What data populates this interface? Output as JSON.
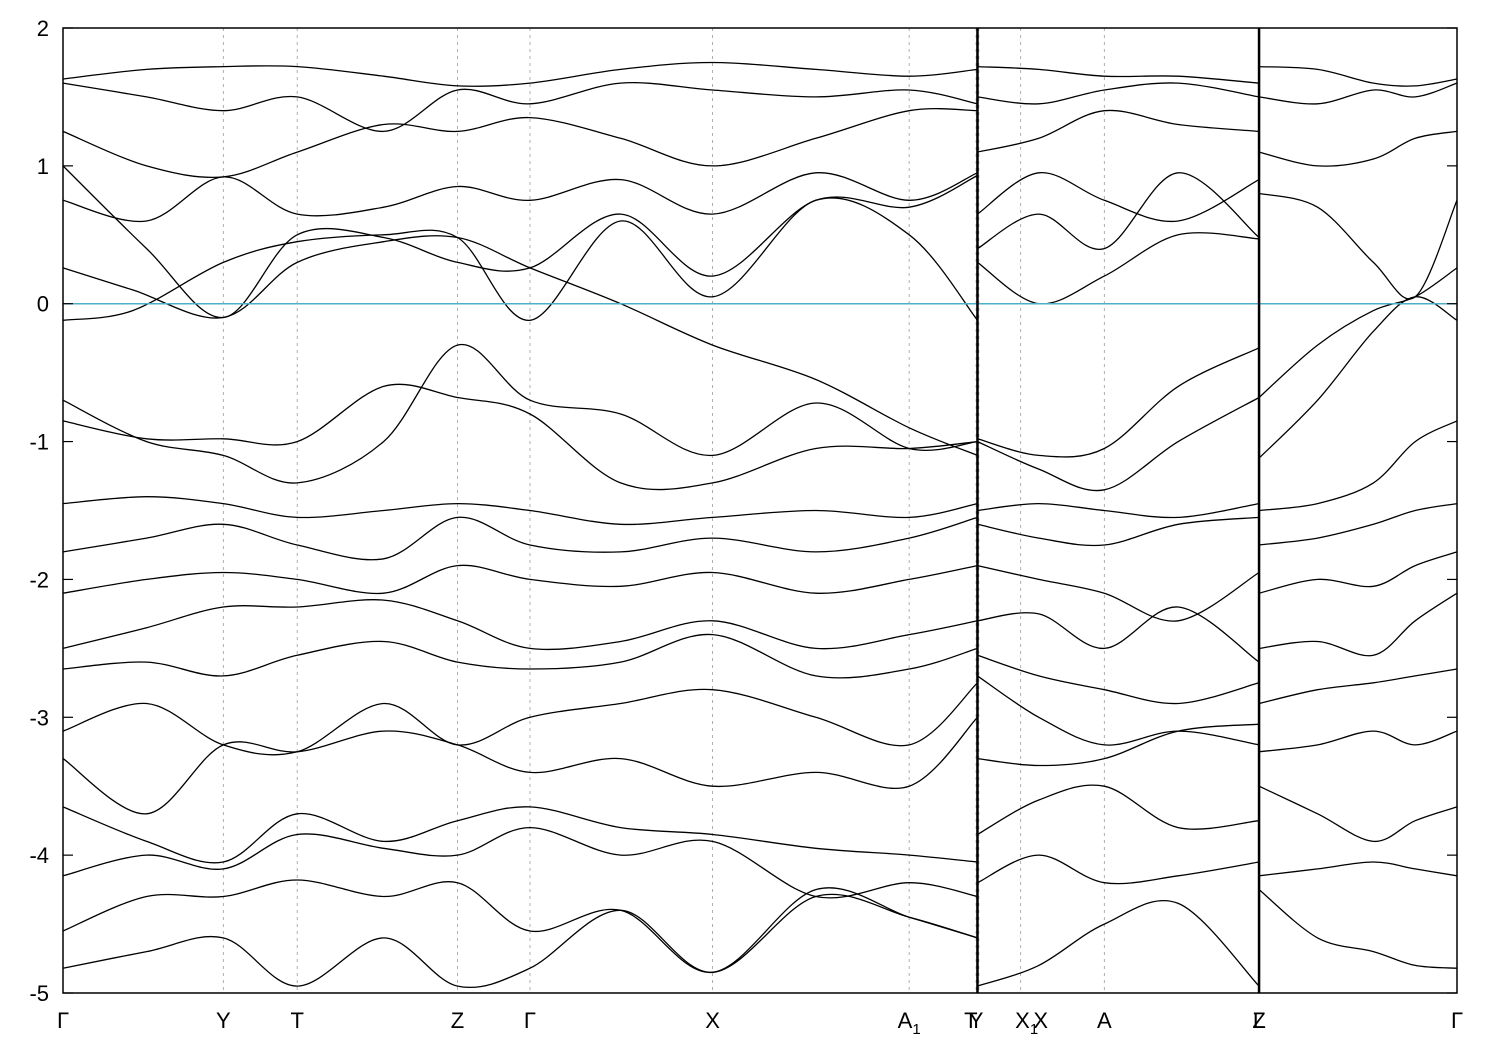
{
  "chart_data": {
    "type": "line",
    "title": "",
    "xlabel": "",
    "ylabel": "",
    "ylim": [
      -5,
      2
    ],
    "yticks": [
      -5,
      -4,
      -3,
      -2,
      -1,
      0,
      1,
      2
    ],
    "fermi_level": 0,
    "colors": {
      "bands": "#000000",
      "fermi": "#4bafc8",
      "grid": "#9a9a9a"
    },
    "grid": "vertical dashed at high-symmetry points",
    "path_length": 10,
    "kpoints": [
      {
        "label": "Γ",
        "sub": "",
        "x": 0.0
      },
      {
        "label": "Y",
        "sub": "",
        "x": 1.15
      },
      {
        "label": "T",
        "sub": "",
        "x": 1.68
      },
      {
        "label": "Z",
        "sub": "",
        "x": 2.83
      },
      {
        "label": "Γ",
        "sub": "",
        "x": 3.35
      },
      {
        "label": "X",
        "sub": "",
        "x": 4.66
      },
      {
        "label": "A",
        "sub": "1",
        "x": 6.07
      },
      {
        "label": "Y",
        "sub": "",
        "x": 6.55
      },
      {
        "label": "T",
        "sub": "",
        "x": 6.57
      },
      {
        "label": "X",
        "sub": "1",
        "x": 6.87
      },
      {
        "label": "X",
        "sub": "",
        "x": 6.87
      },
      {
        "label": "A",
        "sub": "",
        "x": 7.47
      },
      {
        "label": "Z",
        "sub": "",
        "x": 8.58
      },
      {
        "label": "L",
        "sub": "",
        "x": 8.58
      },
      {
        "label": "Γ",
        "sub": "",
        "x": 10.0
      }
    ],
    "segment_breaks": [
      6.56,
      8.58
    ],
    "bands": [
      {
        "x": [
          0,
          0.5,
          1.15,
          1.68,
          2.3,
          2.83,
          3.35,
          4.0,
          4.66,
          5.4,
          6.07,
          6.56
        ],
        "y": [
          0.26,
          0.1,
          -0.1,
          0.3,
          0.45,
          0.48,
          0.26,
          0.0,
          -0.3,
          -0.55,
          -0.9,
          -1.1
        ]
      },
      {
        "x": [
          0,
          0.5,
          1.15,
          1.68,
          2.3,
          2.83,
          3.35,
          4.0,
          4.66,
          5.4,
          6.07,
          6.56
        ],
        "y": [
          -0.12,
          -0.05,
          0.3,
          0.45,
          0.5,
          0.48,
          -0.12,
          0.6,
          0.05,
          0.75,
          0.5,
          -0.12
        ]
      },
      {
        "x": [
          0,
          0.6,
          1.15,
          1.68,
          2.3,
          2.83,
          3.35,
          4.0,
          4.66,
          5.4,
          6.07,
          6.56
        ],
        "y": [
          1.0,
          0.4,
          -0.1,
          0.5,
          0.48,
          0.3,
          0.26,
          0.65,
          0.2,
          0.75,
          0.7,
          0.93
        ]
      },
      {
        "x": [
          0,
          0.6,
          1.15,
          1.68,
          2.3,
          2.83,
          3.35,
          4.0,
          4.66,
          5.4,
          6.07,
          6.56
        ],
        "y": [
          -0.7,
          -1.0,
          -1.1,
          -1.3,
          -1.0,
          -0.3,
          -0.7,
          -0.8,
          -1.1,
          -0.72,
          -1.05,
          -1.0
        ]
      },
      {
        "x": [
          0,
          0.6,
          1.15,
          1.68,
          2.3,
          2.83,
          3.35,
          4.0,
          4.66,
          5.4,
          6.07,
          6.56
        ],
        "y": [
          -0.85,
          -0.98,
          -0.98,
          -1.0,
          -0.6,
          -0.68,
          -0.8,
          -1.3,
          -1.3,
          -1.05,
          -1.05,
          -1.0
        ]
      },
      {
        "x": [
          0,
          0.6,
          1.15,
          1.68,
          2.3,
          2.83,
          3.35,
          4.0,
          4.66,
          5.4,
          6.07,
          6.56
        ],
        "y": [
          -1.45,
          -1.4,
          -1.45,
          -1.55,
          -1.5,
          -1.45,
          -1.5,
          -1.6,
          -1.55,
          -1.5,
          -1.55,
          -1.45
        ]
      },
      {
        "x": [
          0,
          0.6,
          1.15,
          1.68,
          2.3,
          2.83,
          3.35,
          4.0,
          4.66,
          5.4,
          6.07,
          6.56
        ],
        "y": [
          -1.8,
          -1.7,
          -1.6,
          -1.75,
          -1.85,
          -1.55,
          -1.75,
          -1.8,
          -1.7,
          -1.8,
          -1.7,
          -1.55
        ]
      },
      {
        "x": [
          0,
          0.6,
          1.15,
          1.68,
          2.3,
          2.83,
          3.35,
          4.0,
          4.66,
          5.4,
          6.07,
          6.56
        ],
        "y": [
          -2.1,
          -2.0,
          -1.95,
          -2.0,
          -2.1,
          -1.9,
          -2.0,
          -2.05,
          -1.95,
          -2.1,
          -2.0,
          -1.9
        ]
      },
      {
        "x": [
          0,
          0.6,
          1.15,
          1.68,
          2.3,
          2.83,
          3.35,
          4.0,
          4.66,
          5.4,
          6.07,
          6.56
        ],
        "y": [
          -2.5,
          -2.35,
          -2.2,
          -2.2,
          -2.15,
          -2.3,
          -2.5,
          -2.45,
          -2.3,
          -2.5,
          -2.4,
          -2.3
        ]
      },
      {
        "x": [
          0,
          0.6,
          1.15,
          1.68,
          2.3,
          2.83,
          3.35,
          4.0,
          4.66,
          5.4,
          6.07,
          6.56
        ],
        "y": [
          -2.65,
          -2.6,
          -2.7,
          -2.55,
          -2.45,
          -2.6,
          -2.65,
          -2.6,
          -2.4,
          -2.7,
          -2.65,
          -2.5
        ]
      },
      {
        "x": [
          0,
          0.6,
          1.15,
          1.68,
          2.3,
          2.83,
          3.35,
          4.0,
          4.66,
          5.4,
          6.07,
          6.56
        ],
        "y": [
          -3.1,
          -2.9,
          -3.2,
          -3.25,
          -2.9,
          -3.2,
          -3.0,
          -2.9,
          -2.8,
          -3.0,
          -3.2,
          -2.75
        ]
      },
      {
        "x": [
          0,
          0.6,
          1.15,
          1.68,
          2.3,
          2.83,
          3.35,
          4.0,
          4.66,
          5.4,
          6.07,
          6.56
        ],
        "y": [
          -3.3,
          -3.7,
          -3.2,
          -3.25,
          -3.1,
          -3.2,
          -3.4,
          -3.3,
          -3.5,
          -3.4,
          -3.5,
          -3.0
        ]
      },
      {
        "x": [
          0,
          0.6,
          1.15,
          1.68,
          2.3,
          2.83,
          3.35,
          4.0,
          4.66,
          5.4,
          6.07,
          6.56
        ],
        "y": [
          -3.65,
          -3.9,
          -4.05,
          -3.7,
          -3.9,
          -3.75,
          -3.65,
          -3.8,
          -3.85,
          -3.95,
          -4.0,
          -4.05
        ]
      },
      {
        "x": [
          0,
          0.6,
          1.15,
          1.68,
          2.3,
          2.83,
          3.35,
          4.0,
          4.66,
          5.4,
          6.07,
          6.56
        ],
        "y": [
          -4.15,
          -4.0,
          -4.1,
          -3.85,
          -3.95,
          -4.0,
          -3.8,
          -4.0,
          -3.9,
          -4.3,
          -4.2,
          -4.3
        ]
      },
      {
        "x": [
          0,
          0.6,
          1.15,
          1.68,
          2.3,
          2.83,
          3.35,
          4.0,
          4.66,
          5.4,
          6.07,
          6.56
        ],
        "y": [
          -4.55,
          -4.3,
          -4.3,
          -4.18,
          -4.3,
          -4.2,
          -4.55,
          -4.4,
          -4.85,
          -4.25,
          -4.45,
          -4.6
        ]
      },
      {
        "x": [
          0,
          0.6,
          1.15,
          1.68,
          2.3,
          2.83,
          3.35,
          4.0,
          4.66,
          5.4,
          6.07,
          6.56
        ],
        "y": [
          -4.82,
          -4.7,
          -4.6,
          -4.95,
          -4.6,
          -4.95,
          -4.82,
          -4.4,
          -4.85,
          -4.3,
          -4.45,
          -4.6
        ]
      },
      {
        "x": [
          0,
          0.6,
          1.15,
          1.68,
          2.3,
          2.83,
          3.35,
          4.0,
          4.66,
          5.4,
          6.07,
          6.56
        ],
        "y": [
          0.75,
          0.6,
          0.92,
          0.65,
          0.7,
          0.85,
          0.75,
          0.9,
          0.65,
          0.95,
          0.75,
          0.95
        ]
      },
      {
        "x": [
          0,
          0.6,
          1.15,
          1.68,
          2.3,
          2.83,
          3.35,
          4.0,
          4.66,
          5.4,
          6.07,
          6.56
        ],
        "y": [
          1.25,
          1.0,
          0.92,
          1.1,
          1.3,
          1.25,
          1.35,
          1.2,
          1.0,
          1.2,
          1.4,
          1.4
        ]
      },
      {
        "x": [
          0,
          0.6,
          1.15,
          1.68,
          2.3,
          2.83,
          3.35,
          4.0,
          4.66,
          5.4,
          6.07,
          6.56
        ],
        "y": [
          1.6,
          1.5,
          1.4,
          1.5,
          1.25,
          1.55,
          1.45,
          1.6,
          1.55,
          1.5,
          1.55,
          1.45
        ]
      },
      {
        "x": [
          0,
          0.6,
          1.15,
          1.68,
          2.3,
          2.83,
          3.35,
          4.0,
          4.66,
          5.4,
          6.07,
          6.56
        ],
        "y": [
          1.63,
          1.7,
          1.72,
          1.72,
          1.65,
          1.58,
          1.6,
          1.7,
          1.75,
          1.7,
          1.65,
          1.7
        ]
      },
      {
        "x": [
          6.56,
          7.0,
          7.47,
          8.0,
          8.58
        ],
        "y": [
          0.3,
          0.0,
          0.2,
          0.5,
          0.47
        ]
      },
      {
        "x": [
          6.56,
          7.0,
          7.47,
          8.0,
          8.58
        ],
        "y": [
          0.4,
          0.65,
          0.4,
          0.95,
          0.48
        ]
      },
      {
        "x": [
          6.56,
          7.0,
          7.47,
          8.0,
          8.58
        ],
        "y": [
          0.65,
          0.95,
          0.75,
          0.6,
          0.9
        ]
      },
      {
        "x": [
          6.56,
          7.0,
          7.47,
          8.0,
          8.58
        ],
        "y": [
          1.1,
          1.2,
          1.4,
          1.3,
          1.25
        ]
      },
      {
        "x": [
          6.56,
          7.0,
          7.47,
          8.0,
          8.58
        ],
        "y": [
          1.5,
          1.45,
          1.55,
          1.6,
          1.5
        ]
      },
      {
        "x": [
          6.56,
          7.0,
          7.47,
          8.0,
          8.58
        ],
        "y": [
          1.72,
          1.7,
          1.65,
          1.65,
          1.6
        ]
      },
      {
        "x": [
          6.56,
          7.0,
          7.47,
          8.0,
          8.58
        ],
        "y": [
          -0.98,
          -1.1,
          -1.05,
          -0.6,
          -0.32
        ]
      },
      {
        "x": [
          6.56,
          7.0,
          7.47,
          8.0,
          8.58
        ],
        "y": [
          -1.0,
          -1.2,
          -1.35,
          -1.0,
          -0.68
        ]
      },
      {
        "x": [
          6.56,
          7.0,
          7.47,
          8.0,
          8.58
        ],
        "y": [
          -1.5,
          -1.45,
          -1.5,
          -1.55,
          -1.45
        ]
      },
      {
        "x": [
          6.56,
          7.0,
          7.47,
          8.0,
          8.58
        ],
        "y": [
          -1.6,
          -1.7,
          -1.75,
          -1.6,
          -1.55
        ]
      },
      {
        "x": [
          6.56,
          7.0,
          7.47,
          8.0,
          8.58
        ],
        "y": [
          -1.9,
          -2.0,
          -2.1,
          -2.3,
          -1.95
        ]
      },
      {
        "x": [
          6.56,
          7.0,
          7.47,
          8.0,
          8.58
        ],
        "y": [
          -2.3,
          -2.25,
          -2.5,
          -2.2,
          -2.6
        ]
      },
      {
        "x": [
          6.56,
          7.0,
          7.47,
          8.0,
          8.58
        ],
        "y": [
          -2.55,
          -2.7,
          -2.8,
          -2.9,
          -2.75
        ]
      },
      {
        "x": [
          6.56,
          7.0,
          7.47,
          8.0,
          8.58
        ],
        "y": [
          -2.7,
          -3.0,
          -3.2,
          -3.1,
          -3.2
        ]
      },
      {
        "x": [
          6.56,
          7.0,
          7.47,
          8.0,
          8.58
        ],
        "y": [
          -3.3,
          -3.35,
          -3.3,
          -3.1,
          -3.05
        ]
      },
      {
        "x": [
          6.56,
          7.0,
          7.47,
          8.0,
          8.58
        ],
        "y": [
          -3.85,
          -3.6,
          -3.5,
          -3.8,
          -3.75
        ]
      },
      {
        "x": [
          6.56,
          7.0,
          7.47,
          8.0,
          8.58
        ],
        "y": [
          -4.2,
          -4.0,
          -4.2,
          -4.15,
          -4.05
        ]
      },
      {
        "x": [
          6.56,
          7.0,
          7.47,
          8.0,
          8.58
        ],
        "y": [
          -4.95,
          -4.8,
          -4.5,
          -4.35,
          -4.95
        ]
      },
      {
        "x": [
          8.58,
          9.0,
          9.4,
          9.7,
          10.0
        ],
        "y": [
          -0.68,
          -0.3,
          -0.05,
          0.05,
          0.26
        ]
      },
      {
        "x": [
          8.58,
          9.0,
          9.4,
          9.7,
          10.0
        ],
        "y": [
          -1.12,
          -0.7,
          -0.2,
          0.05,
          -0.12
        ]
      },
      {
        "x": [
          8.58,
          9.0,
          9.4,
          9.7,
          10.0
        ],
        "y": [
          0.8,
          0.7,
          0.3,
          0.05,
          0.75
        ]
      },
      {
        "x": [
          8.58,
          9.0,
          9.4,
          9.7,
          10.0
        ],
        "y": [
          -1.5,
          -1.45,
          -1.3,
          -1.0,
          -0.85
        ]
      },
      {
        "x": [
          8.58,
          9.0,
          9.4,
          9.7,
          10.0
        ],
        "y": [
          -1.75,
          -1.7,
          -1.6,
          -1.5,
          -1.45
        ]
      },
      {
        "x": [
          8.58,
          9.0,
          9.4,
          9.7,
          10.0
        ],
        "y": [
          -2.1,
          -2.0,
          -2.05,
          -1.9,
          -1.8
        ]
      },
      {
        "x": [
          8.58,
          9.0,
          9.4,
          9.7,
          10.0
        ],
        "y": [
          -2.5,
          -2.45,
          -2.55,
          -2.3,
          -2.1
        ]
      },
      {
        "x": [
          8.58,
          9.0,
          9.4,
          9.7,
          10.0
        ],
        "y": [
          -2.9,
          -2.8,
          -2.75,
          -2.7,
          -2.65
        ]
      },
      {
        "x": [
          8.58,
          9.0,
          9.4,
          9.7,
          10.0
        ],
        "y": [
          -3.25,
          -3.2,
          -3.1,
          -3.2,
          -3.1
        ]
      },
      {
        "x": [
          8.58,
          9.0,
          9.4,
          9.7,
          10.0
        ],
        "y": [
          -3.5,
          -3.7,
          -3.9,
          -3.75,
          -3.65
        ]
      },
      {
        "x": [
          8.58,
          9.0,
          9.4,
          9.7,
          10.0
        ],
        "y": [
          -4.15,
          -4.1,
          -4.05,
          -4.1,
          -4.15
        ]
      },
      {
        "x": [
          8.58,
          9.0,
          9.4,
          9.7,
          10.0
        ],
        "y": [
          -4.25,
          -4.6,
          -4.7,
          -4.8,
          -4.82
        ]
      },
      {
        "x": [
          8.58,
          9.0,
          9.4,
          9.7,
          10.0
        ],
        "y": [
          1.1,
          1.0,
          1.05,
          1.2,
          1.25
        ]
      },
      {
        "x": [
          8.58,
          9.0,
          9.4,
          9.7,
          10.0
        ],
        "y": [
          1.5,
          1.45,
          1.55,
          1.5,
          1.6
        ]
      },
      {
        "x": [
          8.58,
          9.0,
          9.4,
          9.7,
          10.0
        ],
        "y": [
          1.72,
          1.7,
          1.6,
          1.58,
          1.63
        ]
      }
    ]
  }
}
